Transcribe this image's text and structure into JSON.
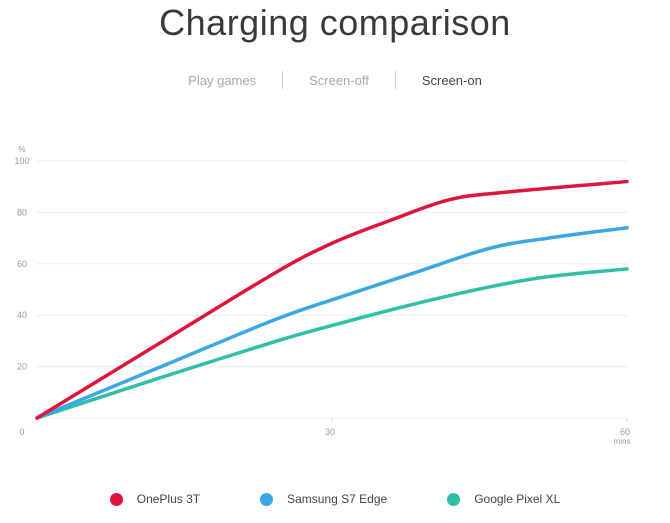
{
  "title": "Charging comparison",
  "tabs": [
    {
      "label": "Play games",
      "active": false
    },
    {
      "label": "Screen-off",
      "active": false
    },
    {
      "label": "Screen-on",
      "active": true
    }
  ],
  "chart_data": {
    "type": "line",
    "title": "Charging comparison",
    "ylabel": "%",
    "xlabel": "mins",
    "ylim": [
      0,
      100
    ],
    "xlim": [
      0,
      60
    ],
    "yticks": [
      "0",
      "20",
      "40",
      "60",
      "80",
      "100"
    ],
    "xticks": [
      {
        "value": 30,
        "label": "30"
      },
      {
        "value": 60,
        "label": "60"
      }
    ],
    "grid": true,
    "legend_position": "bottom",
    "series": [
      {
        "name": "OnePlus 3T",
        "color": "#e0143c",
        "points": [
          [
            0,
            0
          ],
          [
            12,
            28
          ],
          [
            24,
            56
          ],
          [
            30,
            68
          ],
          [
            36,
            77
          ],
          [
            42,
            85
          ],
          [
            48,
            88
          ],
          [
            60,
            92
          ]
        ]
      },
      {
        "name": "Samsung S7 Edge",
        "color": "#3aa7e6",
        "points": [
          [
            0,
            0
          ],
          [
            12,
            19
          ],
          [
            24,
            38
          ],
          [
            30,
            46
          ],
          [
            38,
            56
          ],
          [
            46,
            66
          ],
          [
            52,
            70
          ],
          [
            60,
            74
          ]
        ]
      },
      {
        "name": "Google Pixel XL",
        "color": "#2fbfa8",
        "points": [
          [
            0,
            0
          ],
          [
            12,
            15
          ],
          [
            24,
            29.5
          ],
          [
            30,
            36
          ],
          [
            38,
            44
          ],
          [
            46,
            51
          ],
          [
            52,
            55
          ],
          [
            60,
            58
          ]
        ]
      }
    ]
  }
}
